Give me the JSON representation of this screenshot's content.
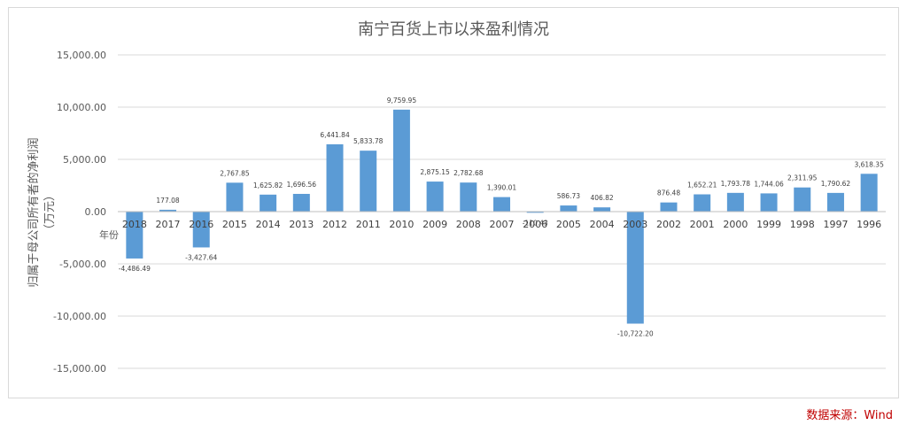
{
  "chart_data": {
    "type": "bar",
    "title": "南宁百货上市以来盈利情况",
    "xlabel": "年份",
    "ylabel_lines": [
      "归属于母公司所有者的净利润",
      "（万元）"
    ],
    "categories": [
      "2018",
      "2017",
      "2016",
      "2015",
      "2014",
      "2013",
      "2012",
      "2011",
      "2010",
      "2009",
      "2008",
      "2007",
      "2006",
      "2005",
      "2004",
      "2003",
      "2002",
      "2001",
      "2000",
      "1999",
      "1998",
      "1997",
      "1996"
    ],
    "values": [
      -4486.49,
      177.08,
      -3427.64,
      2767.85,
      1625.82,
      1696.56,
      6441.84,
      5833.78,
      9759.95,
      2875.15,
      2782.68,
      1390.01,
      -110.43,
      586.73,
      406.82,
      -10722.2,
      876.48,
      1652.21,
      1793.78,
      1744.06,
      2311.95,
      1790.62,
      3618.35
    ],
    "data_labels": [
      "-4,486.49",
      "177.08",
      "-3,427.64",
      "2,767.85",
      "1,625.82",
      "1,696.56",
      "6,441.84",
      "5,833.78",
      "9,759.95",
      "2,875.15",
      "2,782.68",
      "1,390.01",
      "-110.43",
      "586.73",
      "406.82",
      "-10,722.20",
      "876.48",
      "1,652.21",
      "1,793.78",
      "1,744.06",
      "2,311.95",
      "1,790.62",
      "3,618.35"
    ],
    "y_ticks": [
      15000,
      10000,
      5000,
      0,
      -5000,
      -10000,
      -15000
    ],
    "y_tick_labels": [
      "15,000.00",
      "10,000.00",
      "5,000.00",
      "0.00",
      "-5,000.00",
      "-10,000.00",
      "-15,000.00"
    ],
    "ylim": [
      -15000,
      15000
    ],
    "grid": true,
    "bar_color": "#5b9bd5",
    "grid_color": "#d9d9d9"
  },
  "source": "数据来源：Wind"
}
